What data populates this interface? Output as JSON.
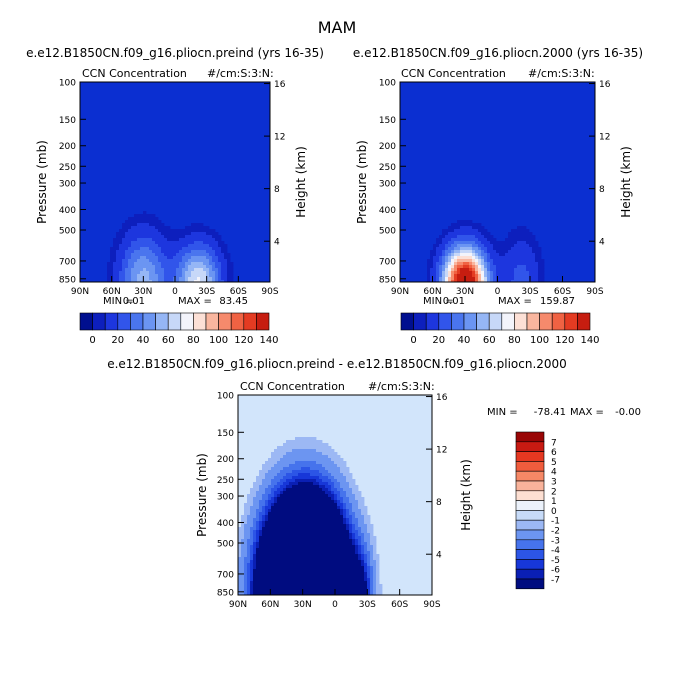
{
  "figure_title": "MAM",
  "colors": {
    "base_fill": "#0b2fd1",
    "diff_base_fill": "#d2e5fb",
    "conc_levels": [
      "#000f8f",
      "#0d1fbd",
      "#1d36de",
      "#3155ea",
      "#4a75ee",
      "#6b95f2",
      "#95b6f5",
      "#c7d8f8",
      "#f3f4fb",
      "#fce0d6",
      "#f9b69f",
      "#f68a6c",
      "#f06243",
      "#e43b22",
      "#c61d10",
      "#8c0606"
    ],
    "diff_levels": [
      "#000c80",
      "#0a1fb4",
      "#1737d8",
      "#2c55e6",
      "#4673ec",
      "#6c95f1",
      "#9cb8f4",
      "#c7dbf8",
      "#ecf2fb",
      "#fddfd2",
      "#f9b39b",
      "#f68866",
      "#f05c3d",
      "#e53821",
      "#c81a12",
      "#990505"
    ]
  },
  "chart_data": [
    {
      "type": "heatmap",
      "title": "e.e12.B1850CN.f09_g16.pliocn.preind (yrs 16-35)",
      "left_label": "CCN Concentration",
      "units": "#/cm:S:3:N:",
      "xlabel": "",
      "ylabel": "Pressure (mb)",
      "y2label": "Height (km)",
      "x_ticks": [
        "90N",
        "60N",
        "30N",
        "0",
        "30S",
        "60S",
        "90S"
      ],
      "y_ticks": [
        "100",
        "150",
        "200",
        "250",
        "300",
        "400",
        "500",
        "700",
        "850"
      ],
      "y2_ticks": [
        "16",
        "12",
        "8",
        "4"
      ],
      "min_label": "MIN =",
      "min_value": "0.01",
      "max_label": "MAX =",
      "max_value": "83.45",
      "max_numeric": 83.45,
      "peak_lat": -22,
      "peak_pressure": 850
    },
    {
      "type": "heatmap",
      "title": "e.e12.B1850CN.f09_g16.pliocn.2000 (yrs 16-35)",
      "left_label": "CCN Concentration",
      "units": "#/cm:S:3:N:",
      "xlabel": "",
      "ylabel": "Pressure (mb)",
      "y2label": "Height (km)",
      "x_ticks": [
        "90N",
        "60N",
        "30N",
        "0",
        "30S",
        "60S",
        "90S"
      ],
      "y_ticks": [
        "100",
        "150",
        "200",
        "250",
        "300",
        "400",
        "500",
        "700",
        "850"
      ],
      "y2_ticks": [
        "16",
        "12",
        "8",
        "4"
      ],
      "min_label": "MIN =",
      "min_value": "0.01",
      "max_label": "MAX =",
      "max_value": "159.87",
      "max_numeric": 159.87,
      "peak_lat": 30,
      "peak_pressure": 850
    },
    {
      "type": "heatmap",
      "title": "e.e12.B1850CN.f09_g16.pliocn.preind - e.e12.B1850CN.f09_g16.pliocn.2000",
      "left_label": "CCN Concentration",
      "units": "#/cm:S:3:N:",
      "xlabel": "",
      "ylabel": "Pressure (mb)",
      "y2label": "Height (km)",
      "x_ticks": [
        "90N",
        "60N",
        "30N",
        "0",
        "30S",
        "60S",
        "90S"
      ],
      "y_ticks": [
        "100",
        "150",
        "200",
        "250",
        "300",
        "400",
        "500",
        "700",
        "850"
      ],
      "y2_ticks": [
        "16",
        "12",
        "8",
        "4"
      ],
      "min_label": "MIN =",
      "min_value": "-78.41",
      "max_label": "MAX =",
      "max_value": "-0.00"
    }
  ],
  "colorbar_concentration": {
    "levels": [
      0,
      10,
      20,
      30,
      40,
      50,
      60,
      70,
      80,
      90,
      100,
      110,
      120,
      130,
      140
    ],
    "labels": [
      "0",
      "20",
      "40",
      "60",
      "80",
      "100",
      "120",
      "140"
    ]
  },
  "colorbar_difference": {
    "levels": [
      -7,
      -6,
      -5,
      -4,
      -3,
      -2,
      -1,
      0,
      1,
      2,
      3,
      4,
      5,
      6,
      7
    ],
    "labels": [
      "7",
      "6",
      "5",
      "4",
      "3",
      "2",
      "1",
      "0",
      "-1",
      "-2",
      "-3",
      "-4",
      "-5",
      "-6",
      "-7"
    ]
  }
}
